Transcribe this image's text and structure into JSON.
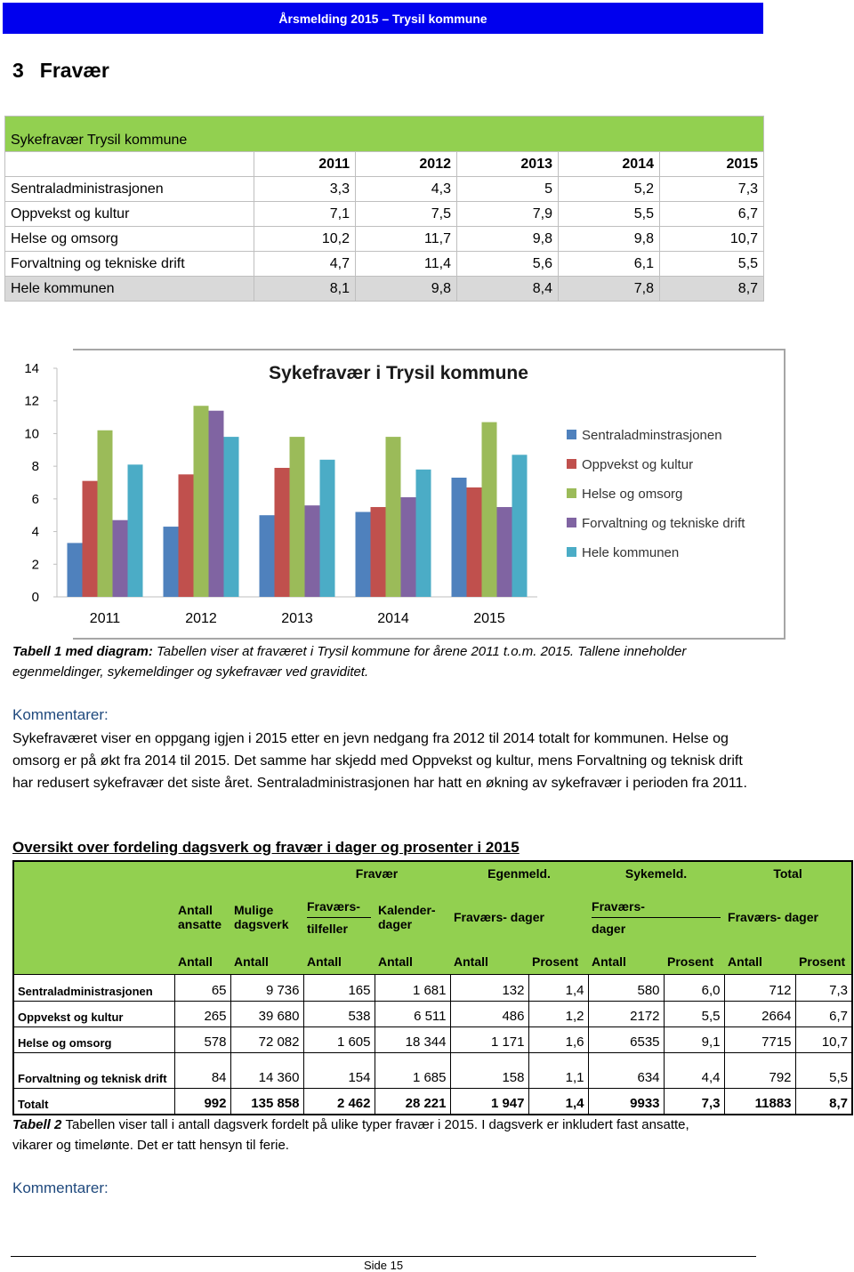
{
  "header": "Årsmelding 2015 – Trysil kommune",
  "section": {
    "number": "3",
    "title": "Fravær"
  },
  "table1": {
    "title": "Sykefravær Trysil kommune",
    "columns": [
      "2011",
      "2012",
      "2013",
      "2014",
      "2015"
    ],
    "rows": [
      {
        "label": "Sentraladministrasjonen",
        "values": [
          "3,3",
          "4,3",
          "5",
          "5,2",
          "7,3"
        ]
      },
      {
        "label": "Oppvekst og kultur",
        "values": [
          "7,1",
          "7,5",
          "7,9",
          "5,5",
          "6,7"
        ]
      },
      {
        "label": "Helse og omsorg",
        "values": [
          "10,2",
          "11,7",
          "9,8",
          "9,8",
          "10,7"
        ]
      },
      {
        "label": "Forvaltning og tekniske drift",
        "values": [
          "4,7",
          "11,4",
          "5,6",
          "6,1",
          "5,5"
        ]
      },
      {
        "label": "Hele kommunen",
        "values": [
          "8,1",
          "9,8",
          "8,4",
          "7,8",
          "8,7"
        ]
      }
    ]
  },
  "chart_data": {
    "type": "bar",
    "title": "Sykefravær i Trysil kommune",
    "categories": [
      "2011",
      "2012",
      "2013",
      "2014",
      "2015"
    ],
    "series": [
      {
        "name": "Sentraladminstrasjonen",
        "color": "#4f81bd",
        "values": [
          3.3,
          4.3,
          5,
          5.2,
          7.3
        ]
      },
      {
        "name": "Oppvekst og kultur",
        "color": "#c0504d",
        "values": [
          7.1,
          7.5,
          7.9,
          5.5,
          6.7
        ]
      },
      {
        "name": "Helse og omsorg",
        "color": "#9bbb59",
        "values": [
          10.2,
          11.7,
          9.8,
          9.8,
          10.7
        ]
      },
      {
        "name": "Forvaltning og tekniske drift",
        "color": "#8064a2",
        "values": [
          4.7,
          11.4,
          5.6,
          6.1,
          5.5
        ]
      },
      {
        "name": "Hele kommunen",
        "color": "#4bacc6",
        "values": [
          8.1,
          9.8,
          8.4,
          7.8,
          8.7
        ]
      }
    ],
    "ylim": [
      0,
      14
    ],
    "yticks": [
      0,
      2,
      4,
      6,
      8,
      10,
      12,
      14
    ],
    "legend": "right"
  },
  "caption1": {
    "label": "Tabell 1 med diagram:",
    "text": "Tabellen viser at fraværet i Trysil kommune for årene 2011 t.o.m. 2015. Tallene inneholder egenmeldinger, sykemeldinger og sykefravær ved graviditet."
  },
  "comments1": {
    "label": "Kommentarer:",
    "text": "Sykefraværet viser en oppgang igjen i 2015 etter en jevn nedgang fra 2012 til 2014 totalt for kommunen. Helse og omsorg er på økt fra 2014 til 2015. Det samme har skjedd med Oppvekst og kultur, mens Forvaltning og teknisk drift har redusert sykefravær det siste året. Sentraladministrasjonen har hatt en økning av sykefravær i perioden fra 2011."
  },
  "table2": {
    "title": "Oversikt over fordeling dagsverk og fravær i dager og prosenter i 2015",
    "groups": [
      "Fravær",
      "Egenmeld.",
      "Sykemeld.",
      "Total"
    ],
    "subheaders": [
      [
        "Antall ansatte"
      ],
      [
        "Mulige dagsverk"
      ],
      [
        "Fraværs-",
        "tilfeller"
      ],
      [
        "Kalender- dager"
      ],
      [
        "Fraværs- dager"
      ],
      [
        "Fraværs-",
        "dager"
      ],
      [
        "Fraværs- dager"
      ]
    ],
    "units": [
      "Antall",
      "Antall",
      "Antall",
      "Antall",
      "Antall",
      "Prosent",
      "Antall",
      "Prosent",
      "Antall",
      "Prosent"
    ],
    "rows": [
      {
        "label": "Sentraladministrasjonen",
        "values": [
          "65",
          "9 736",
          "165",
          "1 681",
          "132",
          "1,4",
          "580",
          "6,0",
          "712",
          "7,3"
        ]
      },
      {
        "label": "Oppvekst og kultur",
        "values": [
          "265",
          "39 680",
          "538",
          "6 511",
          "486",
          "1,2",
          "2172",
          "5,5",
          "2664",
          "6,7"
        ]
      },
      {
        "label": "Helse og omsorg",
        "values": [
          "578",
          "72 082",
          "1 605",
          "18 344",
          "1 171",
          "1,6",
          "6535",
          "9,1",
          "7715",
          "10,7"
        ]
      },
      {
        "label": "Forvaltning og teknisk drift",
        "values": [
          "84",
          "14 360",
          "154",
          "1 685",
          "158",
          "1,1",
          "634",
          "4,4",
          "792",
          "5,5"
        ]
      },
      {
        "label": "Totalt",
        "values": [
          "992",
          "135 858",
          "2 462",
          "28 221",
          "1 947",
          "1,4",
          "9933",
          "7,3",
          "11883",
          "8,7"
        ]
      }
    ]
  },
  "caption2": {
    "label": "Tabell 2",
    "text": "Tabellen viser tall i antall dagsverk fordelt på ulike typer fravær i 2015.  I dagsverk er inkludert fast ansatte, vikarer og timelønte. Det er tatt hensyn til ferie."
  },
  "comments2": {
    "label": "Kommentarer:"
  },
  "footer": "Side 15"
}
